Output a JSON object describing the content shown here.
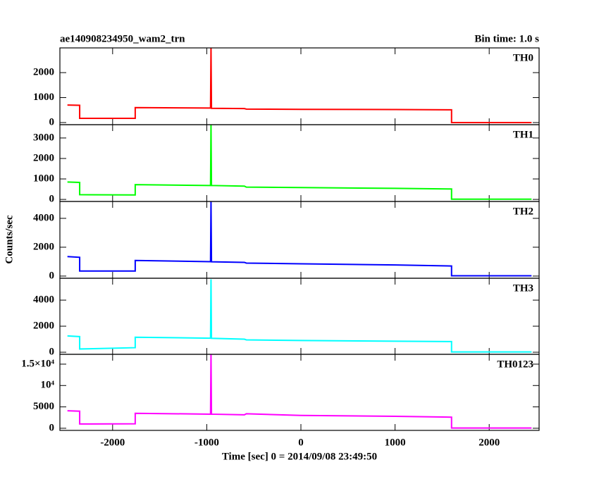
{
  "chart_data": [
    {
      "type": "line",
      "title": "ae140908234950_wam2_trn",
      "subtitle": "Bin time: 1.0 s",
      "x": [
        -2480,
        -2350,
        -2350,
        -1760,
        -1760,
        -960,
        -955,
        -950,
        -600,
        -580,
        0,
        1000,
        1600,
        1600,
        2450
      ],
      "series": [
        {
          "name": "TH0",
          "color": "#ff0000",
          "values": [
            700,
            690,
            170,
            170,
            600,
            580,
            3000,
            570,
            560,
            540,
            530,
            520,
            510,
            0,
            0
          ]
        }
      ],
      "xlim": [
        -2560,
        2530
      ],
      "ylim": [
        -85,
        2990
      ],
      "yticks": [
        0,
        1000,
        2000
      ]
    },
    {
      "type": "line",
      "x": [
        -2480,
        -2350,
        -2350,
        -1760,
        -1760,
        -960,
        -955,
        -950,
        -600,
        -580,
        0,
        1000,
        1600,
        1600,
        2450
      ],
      "series": [
        {
          "name": "TH1",
          "color": "#00ff00",
          "values": [
            850,
            830,
            230,
            220,
            720,
            680,
            3650,
            680,
            650,
            600,
            580,
            540,
            510,
            10,
            10
          ]
        }
      ],
      "xlim": [
        -2560,
        2530
      ],
      "ylim": [
        -100,
        3650
      ],
      "yticks": [
        0,
        1000,
        2000,
        3000
      ]
    },
    {
      "type": "line",
      "y_label": "Counts/sec",
      "x": [
        -2480,
        -2350,
        -2350,
        -1760,
        -1760,
        -960,
        -955,
        -950,
        -600,
        -580,
        0,
        1000,
        1600,
        1600,
        2450
      ],
      "series": [
        {
          "name": "TH2",
          "color": "#0000ff",
          "values": [
            1350,
            1300,
            350,
            350,
            1080,
            1000,
            5170,
            990,
            950,
            900,
            850,
            770,
            700,
            20,
            20
          ]
        }
      ],
      "xlim": [
        -2560,
        2530
      ],
      "ylim": [
        -150,
        5170
      ],
      "yticks": [
        0,
        2000,
        4000
      ]
    },
    {
      "type": "line",
      "x": [
        -2480,
        -2350,
        -2350,
        -1760,
        -1760,
        -960,
        -955,
        -950,
        -600,
        -580,
        0,
        1000,
        1600,
        1600,
        2450
      ],
      "series": [
        {
          "name": "TH3",
          "color": "#00ffff",
          "values": [
            1250,
            1200,
            250,
            350,
            1150,
            1080,
            5600,
            1070,
            1000,
            950,
            900,
            850,
            820,
            20,
            20
          ]
        }
      ],
      "xlim": [
        -2560,
        2530
      ],
      "ylim": [
        -160,
        5680
      ],
      "yticks": [
        0,
        2000,
        4000
      ]
    },
    {
      "type": "line",
      "x_label": "Time [sec] 0 = 2014/09/08 23:49:50",
      "x": [
        -2480,
        -2350,
        -2350,
        -1760,
        -1760,
        -960,
        -955,
        -950,
        -600,
        -580,
        0,
        1000,
        1600,
        1600,
        2450
      ],
      "series": [
        {
          "name": "TH0123",
          "color": "#ff00ff",
          "values": [
            4100,
            4000,
            1000,
            1050,
            3500,
            3300,
            17300,
            3300,
            3150,
            3400,
            3000,
            2800,
            2600,
            50,
            50
          ]
        }
      ],
      "xlim": [
        -2560,
        2530
      ],
      "ylim": [
        -500,
        17300
      ],
      "yticks": [
        0,
        5000,
        {
          "value": 10000,
          "label": "10⁴"
        },
        {
          "value": 15000,
          "label": "1.5×10⁴"
        }
      ],
      "xticks": [
        -2000,
        -1000,
        0,
        1000,
        2000
      ]
    }
  ]
}
